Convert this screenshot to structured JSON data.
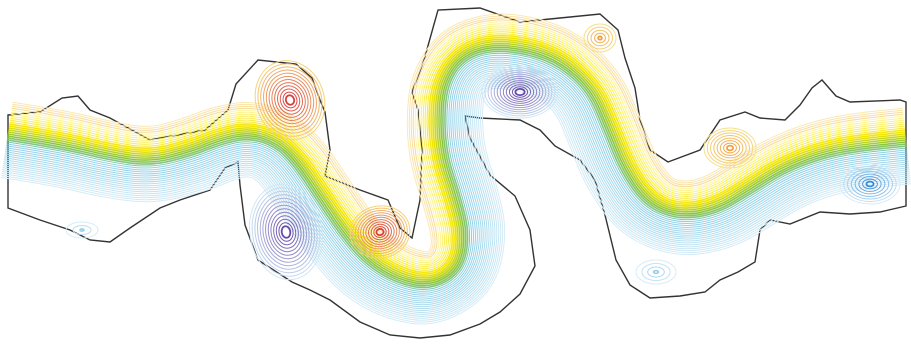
{
  "figure": {
    "kind": "contour-plot",
    "description_visible_text": "",
    "colors": {
      "background": "#ffffff",
      "outline": "#333333",
      "core_yellow": "#f5e600",
      "core_green": "#8cc63f",
      "warm_orange": "#f0a040",
      "warm_red": "#d84040",
      "cool_lightblue": "#9fd0ee",
      "cool_blue": "#3a8ad8",
      "cool_purple": "#6a4aa8"
    },
    "features": {
      "band": "meandering-band",
      "warm_eddies": 4,
      "cool_eddies": 5
    }
  }
}
